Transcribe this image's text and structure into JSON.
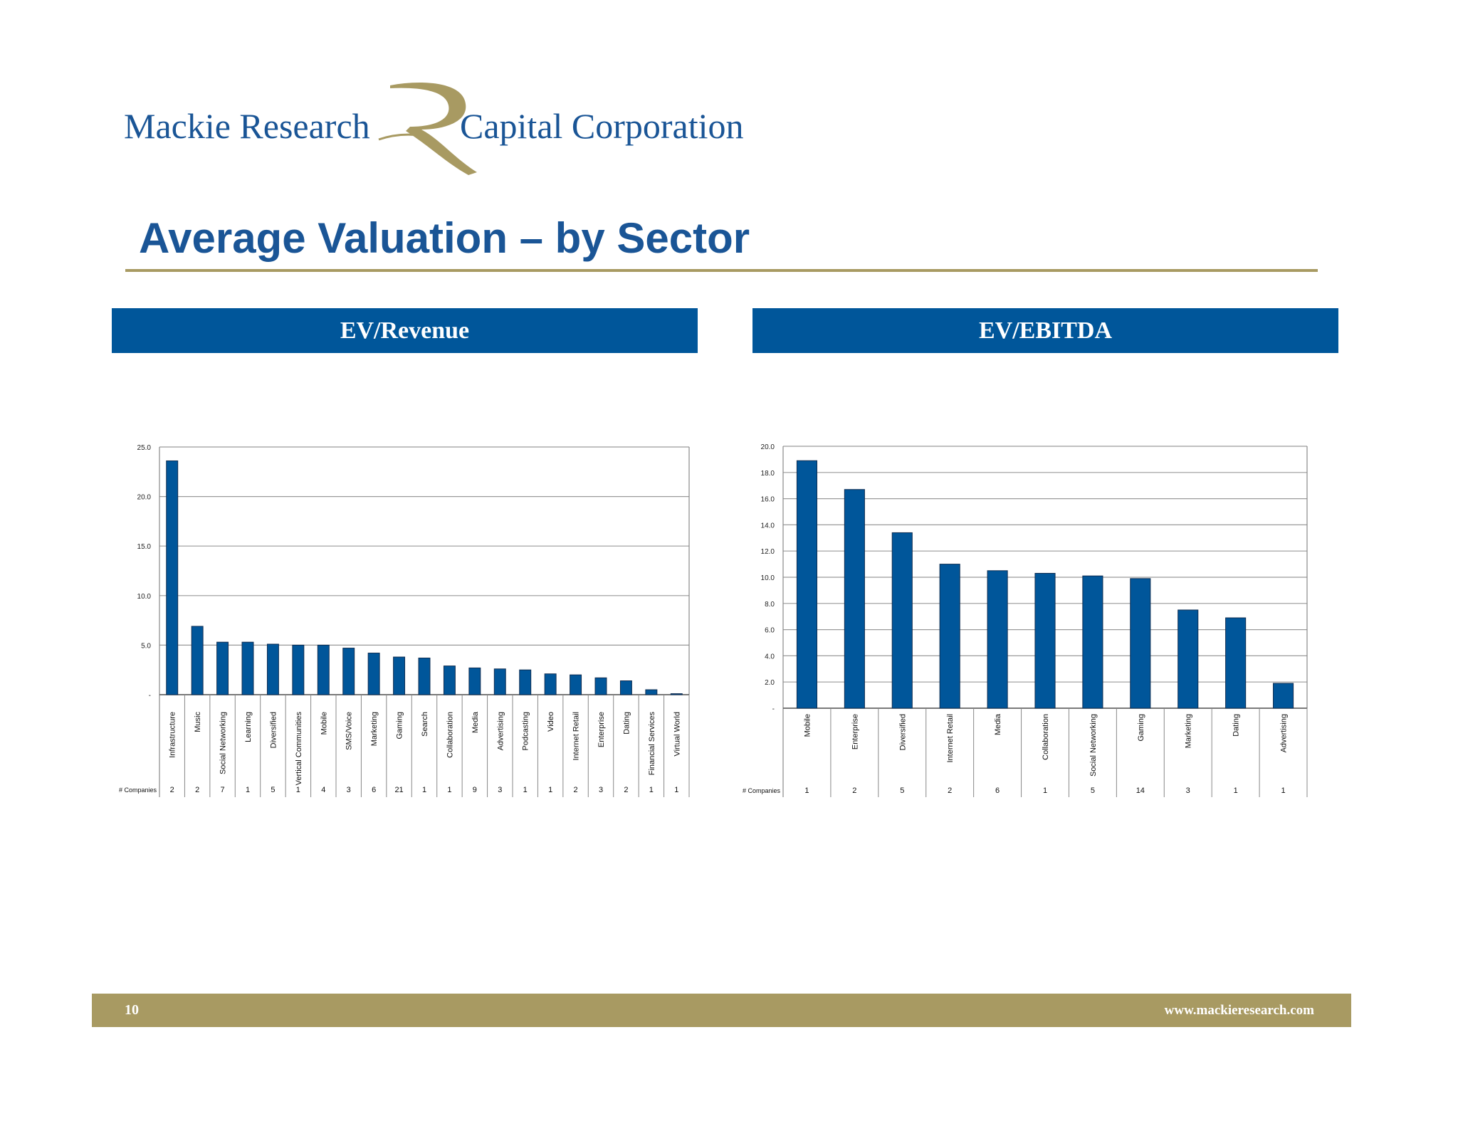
{
  "brand": {
    "name_left": "Mackie Research",
    "name_right": "Capital Corporation",
    "logo_letter": "R",
    "blue": "#1a5596",
    "gold": "#a89a62"
  },
  "page_title": "Average Valuation – by Sector",
  "footer": {
    "page_number": "10",
    "url": "www.mackieresearch.com"
  },
  "chart_data": [
    {
      "type": "bar",
      "panel_title": "EV/Revenue",
      "categories": [
        "Infrastructure",
        "Music",
        "Social Networking",
        "Learning",
        "Diversified",
        "Vertical Communities",
        "Mobile",
        "SMS/Voice",
        "Marketing",
        "Gaming",
        "Search",
        "Collaboration",
        "Media",
        "Advertising",
        "Podcasting",
        "Video",
        "Internet Retail",
        "Enterprise",
        "Dating",
        "Financial Services",
        "Virtual World"
      ],
      "values": [
        23.6,
        6.9,
        5.3,
        5.3,
        5.1,
        5.0,
        5.0,
        4.7,
        4.2,
        3.8,
        3.7,
        2.9,
        2.7,
        2.6,
        2.5,
        2.1,
        2.0,
        1.7,
        1.4,
        0.5,
        0.1
      ],
      "companies_label": "# Companies",
      "companies": [
        "2",
        "2",
        "7",
        "1",
        "5",
        "1",
        "4",
        "3",
        "6",
        "21",
        "1",
        "1",
        "9",
        "3",
        "1",
        "1",
        "2",
        "3",
        "2",
        "1",
        "1"
      ],
      "yticks": [
        "-",
        "5.0",
        "10.0",
        "15.0",
        "20.0",
        "25.0"
      ],
      "ylim": [
        0,
        25
      ],
      "grid": true,
      "bar_color": "#00569a"
    },
    {
      "type": "bar",
      "panel_title": "EV/EBITDA",
      "categories": [
        "Mobile",
        "Enterprise",
        "Diversified",
        "Internet Retail",
        "Media",
        "Collaboration",
        "Social Networking",
        "Gaming",
        "Marketing",
        "Dating",
        "Advertising"
      ],
      "values": [
        18.9,
        16.7,
        13.4,
        11.0,
        10.5,
        10.3,
        10.1,
        9.9,
        7.5,
        6.9,
        1.9
      ],
      "companies_label": "# Companies",
      "companies": [
        "1",
        "2",
        "5",
        "2",
        "6",
        "1",
        "5",
        "14",
        "3",
        "1",
        "1"
      ],
      "yticks": [
        "-",
        "2.0",
        "4.0",
        "6.0",
        "8.0",
        "10.0",
        "12.0",
        "14.0",
        "16.0",
        "18.0",
        "20.0"
      ],
      "ylim": [
        0,
        20
      ],
      "grid": true,
      "bar_color": "#00569a"
    }
  ]
}
